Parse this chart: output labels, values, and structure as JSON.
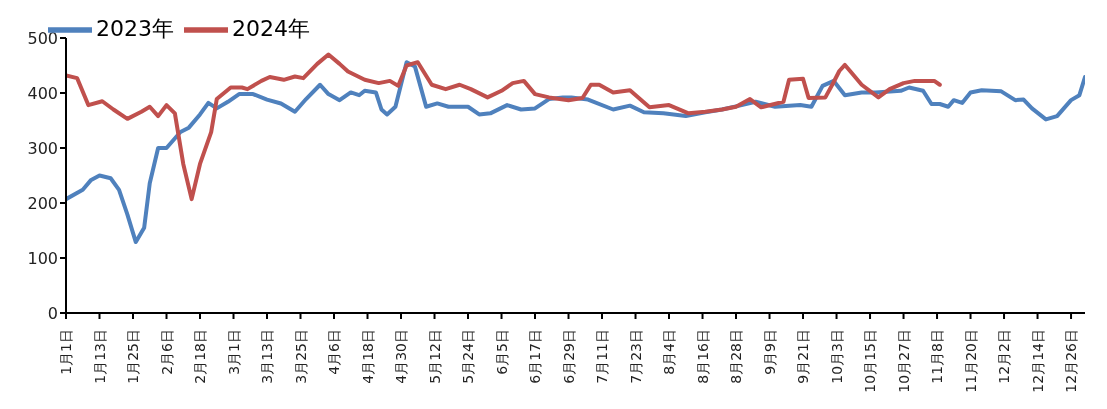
{
  "chart_data": {
    "type": "line",
    "legend": "top left",
    "line_style": "solid",
    "marker": "none",
    "grid": false,
    "ylim": [
      0,
      500
    ],
    "yticks": [
      0,
      100,
      200,
      300,
      400,
      500
    ],
    "xlim": [
      "--01-01",
      "--12-31"
    ],
    "xticks": [
      {
        "value": "--01-01",
        "label": "1月1日"
      },
      {
        "value": "--01-13",
        "label": "1月13日"
      },
      {
        "value": "--01-25",
        "label": "1月25日"
      },
      {
        "value": "--02-06",
        "label": "2月6日"
      },
      {
        "value": "--02-18",
        "label": "2月18日"
      },
      {
        "value": "--03-01",
        "label": "3月1日"
      },
      {
        "value": "--03-13",
        "label": "3月13日"
      },
      {
        "value": "--03-25",
        "label": "3月25日"
      },
      {
        "value": "--04-06",
        "label": "4月6日"
      },
      {
        "value": "--04-18",
        "label": "4月18日"
      },
      {
        "value": "--04-30",
        "label": "4月30日"
      },
      {
        "value": "--05-12",
        "label": "5月12日"
      },
      {
        "value": "--05-24",
        "label": "5月24日"
      },
      {
        "value": "--06-05",
        "label": "6月5日"
      },
      {
        "value": "--06-17",
        "label": "6月17日"
      },
      {
        "value": "--06-29",
        "label": "6月29日"
      },
      {
        "value": "--07-11",
        "label": "7月11日"
      },
      {
        "value": "--07-23",
        "label": "7月23日"
      },
      {
        "value": "--08-04",
        "label": "8月4日"
      },
      {
        "value": "--08-16",
        "label": "8月16日"
      },
      {
        "value": "--08-28",
        "label": "8月28日"
      },
      {
        "value": "--09-09",
        "label": "9月9日"
      },
      {
        "value": "--09-21",
        "label": "9月21日"
      },
      {
        "value": "--10-03",
        "label": "10月3日"
      },
      {
        "value": "--10-15",
        "label": "10月15日"
      },
      {
        "value": "--10-27",
        "label": "10月27日"
      },
      {
        "value": "--11-08",
        "label": "11月8日"
      },
      {
        "value": "--11-20",
        "label": "11月20日"
      },
      {
        "value": "--12-02",
        "label": "12月2日"
      },
      {
        "value": "--12-14",
        "label": "12月14日"
      },
      {
        "value": "--12-26",
        "label": "12月26日"
      }
    ],
    "series": [
      {
        "name": "2023年",
        "color": "#4f81bd",
        "x": [
          "--01-01",
          "--01-07",
          "--01-10",
          "--01-13",
          "--01-17",
          "--01-20",
          "--01-23",
          "--01-26",
          "--01-29",
          "--01-31",
          "--02-03",
          "--02-06",
          "--02-11",
          "--02-14",
          "--02-18",
          "--02-21",
          "--02-24",
          "--02-28",
          "--03-03",
          "--03-08",
          "--03-13",
          "--03-18",
          "--03-23",
          "--03-27",
          "--04-01",
          "--04-04",
          "--04-08",
          "--04-12",
          "--04-15",
          "--04-17",
          "--04-21",
          "--04-23",
          "--04-25",
          "--04-28",
          "--05-02",
          "--05-05",
          "--05-09",
          "--05-13",
          "--05-17",
          "--05-21",
          "--05-24",
          "--05-28",
          "--06-01",
          "--06-07",
          "--06-12",
          "--06-17",
          "--06-22",
          "--06-27",
          "--06-30",
          "--07-06",
          "--07-15",
          "--07-21",
          "--07-26",
          "--08-02",
          "--08-10",
          "--08-17",
          "--08-23",
          "--08-30",
          "--09-04",
          "--09-11",
          "--09-20",
          "--09-24",
          "--09-28",
          "--10-02",
          "--10-06",
          "--10-12",
          "--10-17",
          "--10-26",
          "--10-29",
          "--11-03",
          "--11-06",
          "--11-09",
          "--11-12",
          "--11-14",
          "--11-17",
          "--11-20",
          "--11-24",
          "--12-01",
          "--12-06",
          "--12-09",
          "--12-12",
          "--12-17",
          "--12-21",
          "--12-26",
          "--12-29",
          "--12-31"
        ],
        "values": [
          207,
          224,
          242,
          250,
          245,
          224,
          179,
          129,
          155,
          236,
          300,
          300,
          329,
          337,
          361,
          382,
          372,
          384,
          398,
          398,
          388,
          381,
          366,
          389,
          415,
          398,
          387,
          401,
          396,
          404,
          401,
          370,
          361,
          375,
          456,
          448,
          375,
          381,
          375,
          375,
          375,
          361,
          363,
          378,
          370,
          372,
          389,
          392,
          392,
          388,
          370,
          377,
          365,
          363,
          358,
          365,
          370,
          378,
          384,
          375,
          378,
          375,
          413,
          422,
          396,
          401,
          401,
          404,
          410,
          404,
          380,
          380,
          375,
          387,
          382,
          401,
          405,
          403,
          387,
          388,
          372,
          352,
          358,
          387,
          396,
          429
        ]
      },
      {
        "name": "2024年",
        "color": "#c0504d",
        "x": [
          "--01-01",
          "--01-05",
          "--01-09",
          "--01-14",
          "--01-18",
          "--01-23",
          "--01-28",
          "--01-31",
          "--02-03",
          "--02-06",
          "--02-09",
          "--02-12",
          "--02-15",
          "--02-18",
          "--02-22",
          "--02-24",
          "--02-29",
          "--03-04",
          "--03-06",
          "--03-11",
          "--03-14",
          "--03-19",
          "--03-23",
          "--03-26",
          "--03-31",
          "--04-04",
          "--04-08",
          "--04-11",
          "--04-17",
          "--04-22",
          "--04-26",
          "--04-29",
          "--05-02",
          "--05-06",
          "--05-11",
          "--05-16",
          "--05-21",
          "--05-25",
          "--05-31",
          "--06-05",
          "--06-09",
          "--06-13",
          "--06-17",
          "--06-22",
          "--06-29",
          "--07-04",
          "--07-07",
          "--07-10",
          "--07-15",
          "--07-21",
          "--07-28",
          "--08-04",
          "--08-11",
          "--08-17",
          "--08-23",
          "--08-28",
          "--09-02",
          "--09-06",
          "--09-14",
          "--09-16",
          "--09-21",
          "--09-23",
          "--09-29",
          "--10-02",
          "--10-04",
          "--10-06",
          "--10-08",
          "--10-12",
          "--10-18",
          "--10-22",
          "--10-27",
          "--10-31",
          "--11-07",
          "--11-09"
        ],
        "values": [
          432,
          427,
          378,
          385,
          370,
          353,
          366,
          375,
          358,
          378,
          363,
          271,
          207,
          271,
          329,
          389,
          410,
          410,
          407,
          422,
          429,
          424,
          430,
          427,
          453,
          470,
          453,
          439,
          424,
          418,
          422,
          413,
          450,
          456,
          415,
          407,
          415,
          407,
          392,
          404,
          418,
          422,
          398,
          392,
          387,
          391,
          415,
          415,
          401,
          405,
          374,
          378,
          363,
          366,
          370,
          375,
          389,
          374,
          384,
          424,
          426,
          391,
          392,
          420,
          440,
          451,
          439,
          415,
          392,
          407,
          418,
          422,
          422,
          415
        ]
      }
    ]
  }
}
